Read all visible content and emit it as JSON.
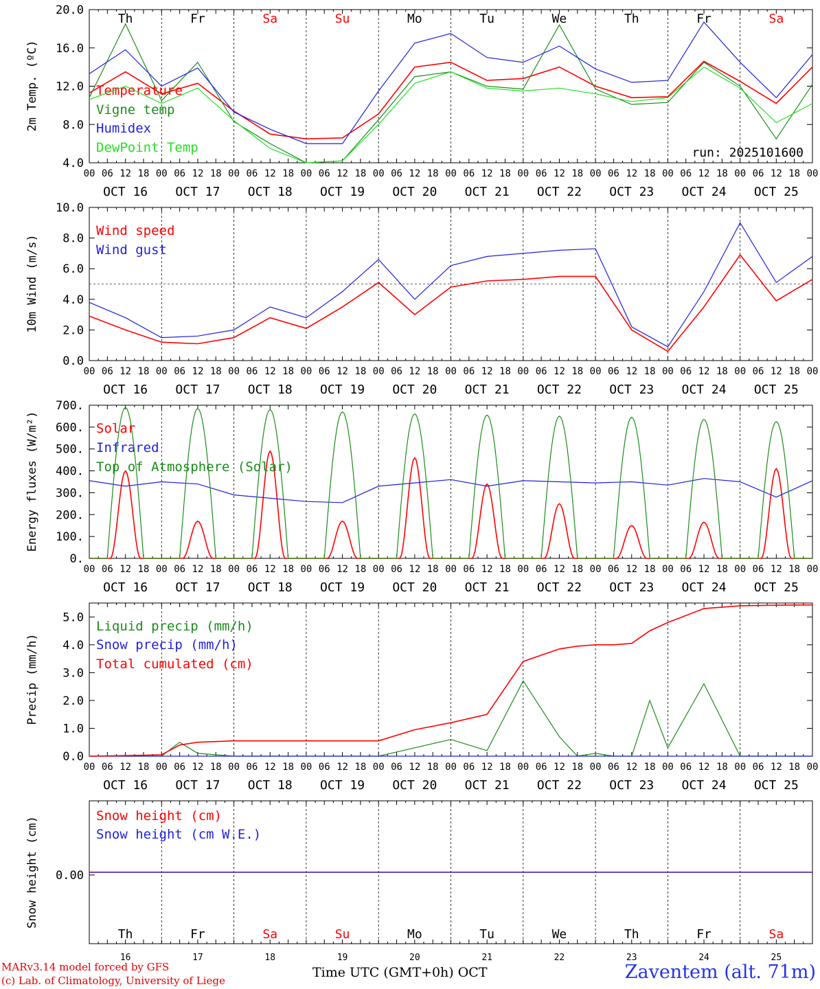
{
  "colors": {
    "red": "#ff0000",
    "green": "#1a8c1a",
    "blue": "#1f1fe0",
    "light_green": "#22e022",
    "weekend": "#ff0000",
    "weekday": "#000000"
  },
  "days": [
    {
      "abbr": "Th",
      "date": "OCT 16",
      "num": "16",
      "weekend": false
    },
    {
      "abbr": "Fr",
      "date": "OCT 17",
      "num": "17",
      "weekend": false
    },
    {
      "abbr": "Sa",
      "date": "OCT 18",
      "num": "18",
      "weekend": true
    },
    {
      "abbr": "Su",
      "date": "OCT 19",
      "num": "19",
      "weekend": true
    },
    {
      "abbr": "Mo",
      "date": "OCT 20",
      "num": "20",
      "weekend": false
    },
    {
      "abbr": "Tu",
      "date": "OCT 21",
      "num": "21",
      "weekend": false
    },
    {
      "abbr": "We",
      "date": "OCT 22",
      "num": "22",
      "weekend": false
    },
    {
      "abbr": "Th",
      "date": "OCT 23",
      "num": "23",
      "weekend": false
    },
    {
      "abbr": "Fr",
      "date": "OCT 24",
      "num": "24",
      "weekend": false
    },
    {
      "abbr": "Sa",
      "date": "OCT 25",
      "num": "25",
      "weekend": true
    }
  ],
  "hour_ticks": [
    "00",
    "06",
    "12",
    "18"
  ],
  "hour_end": "00",
  "chart_data": [
    {
      "id": "temp",
      "type": "line",
      "ylabel": "2m Temp. (ºC)",
      "ylim": [
        4,
        20
      ],
      "yticks": [
        "4.0",
        "8.0",
        "12.0",
        "16.0",
        "20.0"
      ],
      "annotation": "run: 2025101600",
      "x_hours": [
        0,
        12,
        24,
        36,
        48,
        60,
        72,
        84,
        96,
        108,
        120,
        132,
        144,
        156,
        168,
        180,
        192,
        204,
        216,
        228,
        240
      ],
      "series": [
        {
          "name": "Temperature",
          "color": "red",
          "values": [
            11.3,
            13.5,
            11.2,
            12.3,
            9.4,
            7.0,
            6.5,
            6.6,
            9.1,
            14.0,
            14.5,
            12.6,
            12.8,
            14.0,
            12.0,
            10.8,
            10.9,
            14.6,
            12.5,
            10.2,
            14.0
          ]
        },
        {
          "name": "Vigne temp",
          "color": "green",
          "values": [
            10.8,
            18.5,
            10.5,
            14.5,
            8.3,
            6.0,
            4.0,
            4.2,
            8.5,
            13.0,
            13.5,
            12.0,
            11.7,
            18.4,
            11.7,
            10.1,
            10.3,
            14.5,
            12.0,
            6.5,
            12.2
          ]
        },
        {
          "name": "Humidex",
          "color": "blue",
          "values": [
            13.3,
            15.8,
            12.0,
            13.9,
            9.3,
            7.5,
            6.0,
            6.0,
            11.5,
            16.5,
            17.5,
            15.0,
            14.5,
            16.2,
            13.8,
            12.4,
            12.6,
            18.7,
            14.5,
            10.8,
            15.3
          ]
        },
        {
          "name": "DewPoint Temp",
          "color": "light_green",
          "values": [
            10.6,
            12.0,
            10.2,
            11.8,
            8.4,
            5.5,
            4.0,
            4.2,
            8.0,
            12.3,
            13.5,
            11.8,
            11.5,
            11.8,
            11.2,
            10.4,
            10.8,
            14.0,
            11.8,
            8.2,
            10.2
          ]
        }
      ]
    },
    {
      "id": "wind",
      "type": "line",
      "ylabel": "10m Wind (m/s)",
      "ylim": [
        0,
        10
      ],
      "ref_line": 5,
      "yticks": [
        "0.0",
        "2.0",
        "4.0",
        "6.0",
        "8.0",
        "10.0"
      ],
      "x_hours": [
        0,
        12,
        24,
        36,
        48,
        60,
        72,
        84,
        96,
        108,
        120,
        132,
        144,
        156,
        168,
        180,
        192,
        204,
        216,
        228,
        240
      ],
      "series": [
        {
          "name": "Wind speed",
          "color": "red",
          "values": [
            2.9,
            2.0,
            1.2,
            1.1,
            1.5,
            2.8,
            2.1,
            3.5,
            5.1,
            3.0,
            4.8,
            5.2,
            5.3,
            5.5,
            5.5,
            2.0,
            0.6,
            3.5,
            6.9,
            3.9,
            5.3
          ]
        },
        {
          "name": "Wind gust",
          "color": "blue",
          "values": [
            3.8,
            2.8,
            1.5,
            1.6,
            2.0,
            3.5,
            2.8,
            4.5,
            6.6,
            4.0,
            6.2,
            6.8,
            7.0,
            7.2,
            7.3,
            2.2,
            0.9,
            4.5,
            9.0,
            5.1,
            6.8
          ]
        }
      ]
    },
    {
      "id": "flux",
      "type": "line",
      "ylabel": "Energy fluxes (W/m²)",
      "ylim": [
        0,
        700
      ],
      "yticks": [
        "0.",
        "100.",
        "200.",
        "300.",
        "400.",
        "500.",
        "600.",
        "700."
      ],
      "peaks_toa": [
        690,
        685,
        680,
        670,
        660,
        655,
        650,
        645,
        635,
        625
      ],
      "peaks_solar": [
        400,
        170,
        490,
        170,
        460,
        340,
        250,
        150,
        165,
        410
      ],
      "x_hours": [
        0,
        12,
        24,
        36,
        48,
        60,
        72,
        84,
        96,
        108,
        120,
        132,
        144,
        156,
        168,
        180,
        192,
        204,
        216,
        228,
        240
      ],
      "series": [
        {
          "name": "Solar",
          "color": "red",
          "values": []
        },
        {
          "name": "Infrared",
          "color": "blue",
          "values": [
            355,
            330,
            350,
            340,
            290,
            275,
            260,
            255,
            330,
            345,
            360,
            330,
            355,
            350,
            345,
            350,
            335,
            365,
            350,
            280,
            355
          ]
        },
        {
          "name": "Top of Atmosphere (Solar)",
          "color": "green",
          "values": []
        }
      ]
    },
    {
      "id": "precip",
      "type": "line",
      "ylabel": "Precip (mm/h)",
      "ylim": [
        0,
        5.5
      ],
      "yticks": [
        "0.0",
        "1.0",
        "2.0",
        "3.0",
        "4.0",
        "5.0"
      ],
      "x_hours": [
        0,
        12,
        24,
        30,
        36,
        48,
        72,
        96,
        108,
        120,
        132,
        144,
        156,
        162,
        168,
        174,
        180,
        186,
        192,
        204,
        216,
        228,
        240
      ],
      "series": [
        {
          "name": "Liquid precip (mm/h)",
          "color": "green",
          "values": [
            0.0,
            0.0,
            0.0,
            0.5,
            0.1,
            0.0,
            0.0,
            0.0,
            0.3,
            0.6,
            0.2,
            2.7,
            0.7,
            0.0,
            0.1,
            0.0,
            0.0,
            2.0,
            0.3,
            2.6,
            0.0,
            0.0,
            0.0
          ]
        },
        {
          "name": "Snow precip (mm/h)",
          "color": "blue",
          "values": [
            0,
            0,
            0,
            0,
            0,
            0,
            0,
            0,
            0,
            0,
            0,
            0,
            0,
            0,
            0,
            0,
            0,
            0,
            0,
            0,
            0,
            0,
            0
          ]
        },
        {
          "name": "Total cumulated (cm)",
          "color": "red",
          "values": [
            0.0,
            0.02,
            0.05,
            0.4,
            0.5,
            0.55,
            0.55,
            0.55,
            0.95,
            1.2,
            1.5,
            3.4,
            3.85,
            3.95,
            4.0,
            4.0,
            4.05,
            4.5,
            4.8,
            5.3,
            5.4,
            5.42,
            5.43
          ]
        }
      ]
    },
    {
      "id": "snow",
      "type": "line",
      "ylabel": "Snow height (cm)",
      "yticks": [
        "0.00"
      ],
      "series": [
        {
          "name": "Snow height (cm)",
          "color": "red",
          "values": [
            0.0,
            0.0
          ]
        },
        {
          "name": "Snow height (cm W.E.)",
          "color": "blue",
          "values": [
            0.0,
            0.0
          ]
        }
      ]
    }
  ],
  "footer": {
    "credit1": "MARv3.14 model forced by GFS",
    "credit2": "(c) Lab. of Climatology, University of Liege",
    "xtitle": "Time UTC (GMT+0h) OCT",
    "station": "Zaventem (alt. 71m)"
  }
}
